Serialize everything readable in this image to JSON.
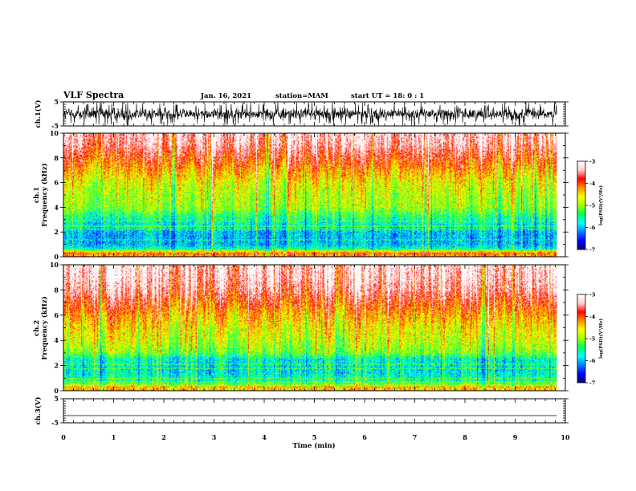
{
  "header": {
    "title": "VLF Spectra",
    "date": "Jan. 16, 2021",
    "station": "station=MAM",
    "start_ut": "start UT =  18: 0  : 1"
  },
  "colors": {
    "spectrum": [
      "#000080",
      "#0000ff",
      "#0080ff",
      "#00ffff",
      "#00ff60",
      "#a0ff00",
      "#ffff00",
      "#ff9000",
      "#ff0000",
      "#ffd0d0",
      "#ffffff"
    ]
  },
  "chart_data": [
    {
      "type": "line",
      "panel": "waveform-ch1",
      "ylabel": "ch.1(V)",
      "ylim": [
        -5,
        5
      ],
      "yticks": [
        5,
        -5
      ],
      "appearance": "dense broadband noise, approx. -3 to +3 V with frequent spikes to +/-5 V"
    },
    {
      "type": "heatmap",
      "panel": "spectrogram-ch1",
      "ylabel_line1": "ch.1",
      "ylabel_line2": "Frequency (kHz)",
      "ylim": [
        0,
        10
      ],
      "yticks": [
        0,
        2,
        4,
        6,
        8,
        10
      ],
      "colorbar": {
        "label": "log(PSD)(V²/Hz)",
        "ticks": [
          -3,
          -4,
          -5,
          -6,
          -7
        ],
        "range": [
          -7,
          -3
        ]
      },
      "level_profile": [
        {
          "freq_khz": 0.0,
          "log_psd": -4.5
        },
        {
          "freq_khz": 0.3,
          "log_psd": -4.0
        },
        {
          "freq_khz": 0.6,
          "log_psd": -5.6
        },
        {
          "freq_khz": 1.0,
          "log_psd": -6.0
        },
        {
          "freq_khz": 2.0,
          "log_psd": -6.0
        },
        {
          "freq_khz": 3.0,
          "log_psd": -5.6
        },
        {
          "freq_khz": 4.0,
          "log_psd": -5.0
        },
        {
          "freq_khz": 5.0,
          "log_psd": -4.9
        },
        {
          "freq_khz": 6.0,
          "log_psd": -4.7
        },
        {
          "freq_khz": 7.0,
          "log_psd": -4.3
        },
        {
          "freq_khz": 8.0,
          "log_psd": -3.9
        },
        {
          "freq_khz": 9.0,
          "log_psd": -3.5
        },
        {
          "freq_khz": 10.0,
          "log_psd": -3.3
        }
      ]
    },
    {
      "type": "heatmap",
      "panel": "spectrogram-ch2",
      "ylabel_line1": "ch.2",
      "ylabel_line2": "Frequency (kHz)",
      "ylim": [
        0,
        10
      ],
      "yticks": [
        0,
        2,
        4,
        6,
        8,
        10
      ],
      "colorbar": {
        "label": "log(PSD)(V²/Hz)",
        "ticks": [
          -3,
          -4,
          -5,
          -6,
          -7
        ],
        "range": [
          -7,
          -3
        ]
      },
      "level_profile": [
        {
          "freq_khz": 0.0,
          "log_psd": -4.3
        },
        {
          "freq_khz": 0.3,
          "log_psd": -4.6
        },
        {
          "freq_khz": 0.7,
          "log_psd": -5.5
        },
        {
          "freq_khz": 1.5,
          "log_psd": -5.8
        },
        {
          "freq_khz": 2.5,
          "log_psd": -5.7
        },
        {
          "freq_khz": 3.0,
          "log_psd": -5.1
        },
        {
          "freq_khz": 4.0,
          "log_psd": -4.8
        },
        {
          "freq_khz": 5.0,
          "log_psd": -4.6
        },
        {
          "freq_khz": 6.0,
          "log_psd": -4.3
        },
        {
          "freq_khz": 7.0,
          "log_psd": -3.9
        },
        {
          "freq_khz": 8.0,
          "log_psd": -3.5
        },
        {
          "freq_khz": 9.0,
          "log_psd": -3.3
        },
        {
          "freq_khz": 10.0,
          "log_psd": -3.2
        }
      ]
    },
    {
      "type": "line",
      "panel": "waveform-ch3",
      "ylabel": "ch.3(V)",
      "ylim": [
        -5,
        5
      ],
      "yticks": [
        5,
        -5
      ],
      "constant_value": -2
    }
  ],
  "xaxis": {
    "label": "Time (min)",
    "xlim": [
      0,
      10
    ],
    "ticks": [
      0,
      1,
      2,
      3,
      4,
      5,
      6,
      7,
      8,
      9,
      10
    ],
    "data_end": 9.83
  }
}
